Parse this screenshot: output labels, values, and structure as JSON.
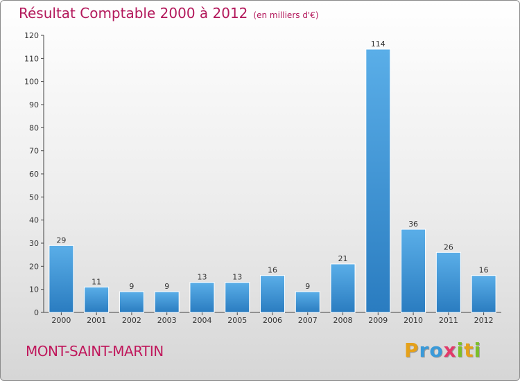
{
  "chart_data": {
    "type": "bar",
    "title": "Résultat Comptable 2000 à 2012",
    "subtitle": "(en milliers d'€)",
    "categories": [
      "2000",
      "2001",
      "2002",
      "2003",
      "2004",
      "2005",
      "2006",
      "2007",
      "2008",
      "2009",
      "2010",
      "2011",
      "2012"
    ],
    "values": [
      29,
      11,
      9,
      9,
      13,
      13,
      16,
      9,
      21,
      114,
      36,
      26,
      16
    ],
    "yticks": [
      0,
      10,
      20,
      30,
      40,
      50,
      60,
      70,
      80,
      90,
      100,
      110,
      120
    ],
    "ylim": [
      0,
      120
    ],
    "xlabel": "",
    "ylabel": "",
    "grid": false,
    "colors": {
      "bar_light": "#5aaee8",
      "bar_dark": "#2a7cc0",
      "axis": "#444444",
      "text": "#333333"
    }
  },
  "footer": {
    "location": "MONT-SAINT-MARTIN",
    "logo": {
      "letters": [
        "P",
        "r",
        "o",
        "x",
        "i",
        "t",
        "i"
      ],
      "colors": [
        "#e5a11a",
        "#3a9ad9",
        "#3a9ad9",
        "#e23a6a",
        "#7bbf2a",
        "#e5a11a",
        "#7bbf2a"
      ]
    }
  }
}
